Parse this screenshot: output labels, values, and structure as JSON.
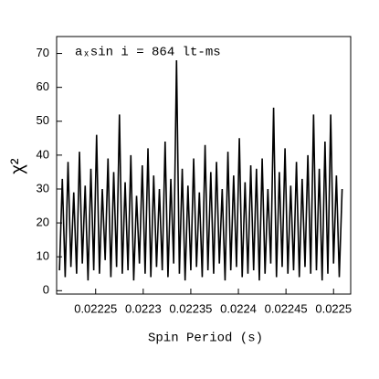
{
  "chart_data": {
    "type": "line",
    "annotation": "aₓsin i = 864 lt-ms",
    "x_label": "Spin Period (s)",
    "y_label": "χ²",
    "color": "#000000",
    "x": [
      0.022212,
      0.022215,
      0.022218,
      0.022221,
      0.022224,
      0.022227,
      0.02223,
      0.022233,
      0.022236,
      0.022239,
      0.022242,
      0.022245,
      0.022248,
      0.022251,
      0.022254,
      0.022257,
      0.02226,
      0.022263,
      0.022266,
      0.022269,
      0.022272,
      0.022275,
      0.022278,
      0.022281,
      0.022284,
      0.022287,
      0.02229,
      0.022293,
      0.022296,
      0.022299,
      0.022302,
      0.022305,
      0.022308,
      0.022311,
      0.022314,
      0.022317,
      0.02232,
      0.022323,
      0.022326,
      0.022329,
      0.022332,
      0.022335,
      0.022338,
      0.022341,
      0.022344,
      0.022347,
      0.02235,
      0.022353,
      0.022356,
      0.022359,
      0.022362,
      0.022365,
      0.022368,
      0.022371,
      0.022374,
      0.022377,
      0.02238,
      0.022383,
      0.022386,
      0.022389,
      0.022392,
      0.022395,
      0.022398,
      0.022401,
      0.022404,
      0.022407,
      0.02241,
      0.022413,
      0.022416,
      0.022419,
      0.022422,
      0.022425,
      0.022428,
      0.022431,
      0.022434,
      0.022437,
      0.02244,
      0.022443,
      0.022446,
      0.022449,
      0.022452,
      0.022455,
      0.022458,
      0.022461,
      0.022464,
      0.022467,
      0.02247,
      0.022473,
      0.022476,
      0.022479,
      0.022482,
      0.022485,
      0.022488,
      0.022491,
      0.022494,
      0.022497,
      0.0225,
      0.022503,
      0.022506,
      0.022509
    ],
    "values": [
      6,
      33,
      4,
      38,
      7,
      29,
      5,
      41,
      8,
      31,
      3,
      36,
      6,
      46,
      5,
      30,
      9,
      39,
      4,
      35,
      7,
      52,
      5,
      32,
      6,
      40,
      3,
      28,
      8,
      37,
      5,
      42,
      4,
      34,
      7,
      30,
      6,
      44,
      4,
      33,
      8,
      68,
      5,
      36,
      3,
      31,
      6,
      39,
      7,
      29,
      4,
      43,
      6,
      35,
      5,
      38,
      8,
      30,
      3,
      41,
      6,
      34,
      7,
      45,
      4,
      32,
      5,
      37,
      6,
      36,
      3,
      39,
      5,
      30,
      8,
      54,
      4,
      35,
      7,
      42,
      5,
      31,
      6,
      38,
      4,
      33,
      7,
      40,
      5,
      52,
      6,
      36,
      3,
      44,
      5,
      52,
      8,
      34,
      4,
      30
    ],
    "xlim": [
      0.022209,
      0.022518
    ],
    "xticks": [
      0.02225,
      0.0223,
      0.02235,
      0.0224,
      0.02245,
      0.0225
    ],
    "ylim": [
      -1,
      75
    ],
    "yticks": [
      0,
      10,
      20,
      30,
      40,
      50,
      60,
      70
    ]
  }
}
